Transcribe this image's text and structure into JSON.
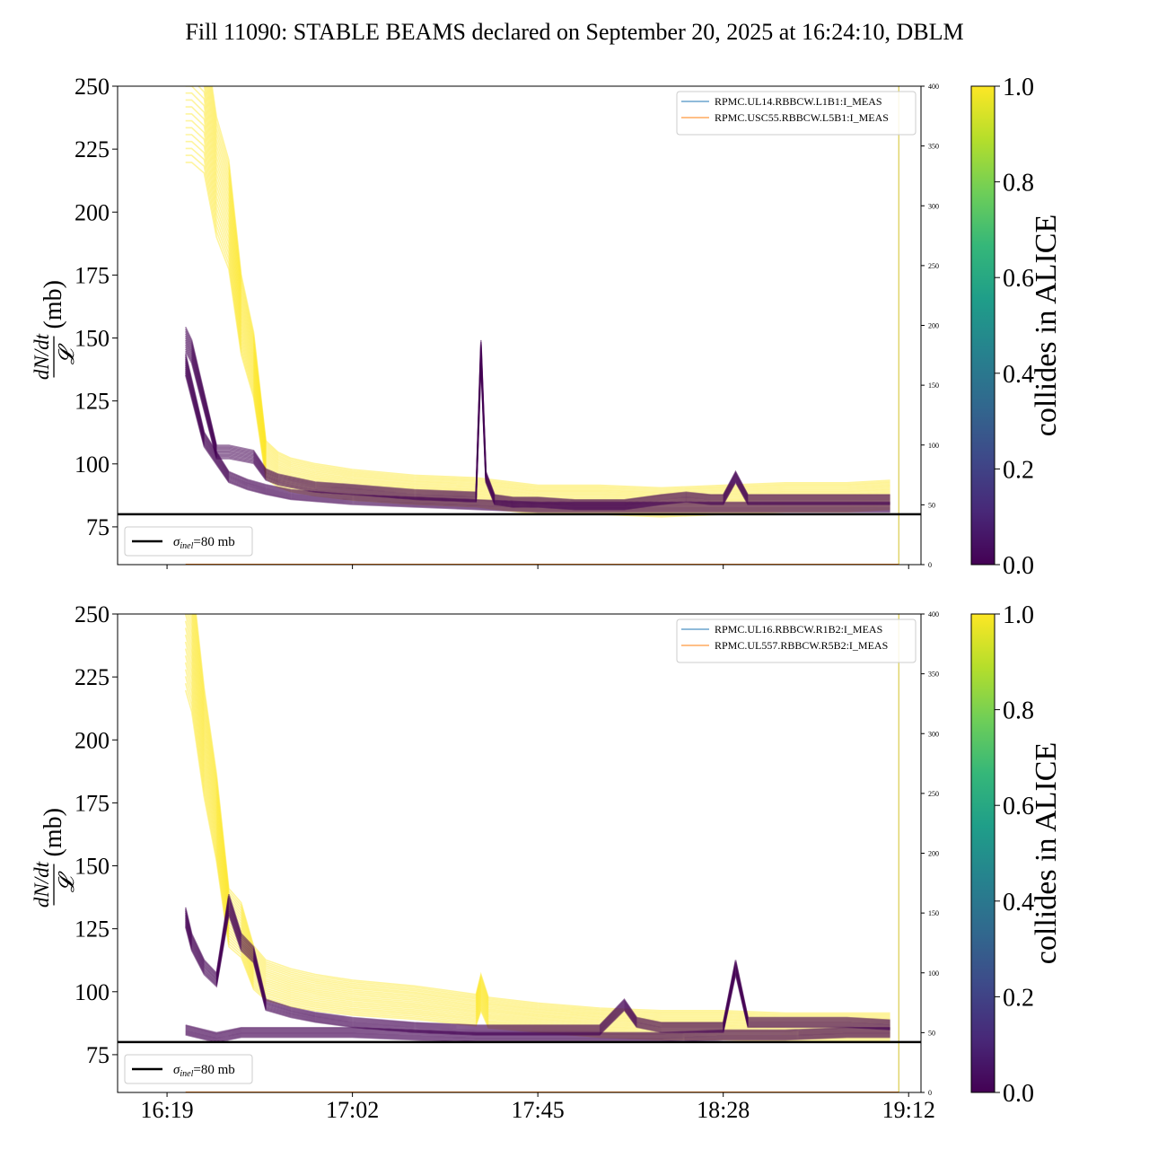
{
  "title": "Fill 11090: STABLE BEAMS declared on September 20, 2025 at 16:24:10, DBLM",
  "colors": {
    "viridis": [
      "#440154",
      "#482878",
      "#3e4989",
      "#31688e",
      "#26828e",
      "#1f9e89",
      "#35b779",
      "#6ece58",
      "#b5de2b",
      "#fde725"
    ],
    "hline": "#000000",
    "right_blue": "#1f77b4",
    "right_orange": "#ff7f0e",
    "vline": "#d4c12a"
  },
  "chart_data": [
    {
      "type": "line",
      "panel": "top",
      "ylabel_math": "dN/dt",
      "ylabel_den": "𝓛",
      "ylabel_unit": "(mb)",
      "ylim": [
        60,
        250
      ],
      "yticks": [
        75,
        100,
        125,
        150,
        175,
        200,
        225,
        250
      ],
      "y2lim": [
        0,
        400
      ],
      "y2ticks": [
        0,
        50,
        100,
        150,
        200,
        250,
        300,
        350,
        400
      ],
      "xlim": [
        -4,
        61
      ],
      "x_ticks_visible": false,
      "hline": {
        "y": 80,
        "label_sym": "σ",
        "label_sub": "inel",
        "label_rest": "=80 mb"
      },
      "vline_x": 59.2,
      "legend_right": [
        "RPMC.UL14.RBBCW.L1B1:I_MEAS",
        "RPMC.USC55.RBBCW.L5B1:I_MEAS"
      ],
      "colorbar": {
        "label": "collides in ALICE",
        "range": [
          0.0,
          1.0
        ],
        "ticks": [
          "0.0",
          "0.2",
          "0.4",
          "0.6",
          "0.8",
          "1.0"
        ]
      },
      "series": [
        {
          "color": 1.0,
          "x": [
            1.5,
            2,
            3,
            4,
            5,
            6,
            7,
            8,
            9,
            10,
            12,
            15,
            20,
            25,
            30,
            35,
            40,
            45,
            50,
            55,
            58.5
          ],
          "y": [
            250,
            250,
            245,
            215,
            200,
            160,
            140,
            102,
            98,
            96,
            94,
            92,
            90,
            89,
            86,
            86,
            85,
            86,
            87,
            87,
            88
          ]
        },
        {
          "color": 0.0,
          "x": [
            1.5,
            2,
            3,
            4,
            5,
            6,
            7,
            8,
            9,
            10,
            12,
            15,
            20,
            25,
            25.4,
            25.8,
            26.5,
            28,
            30,
            33,
            35,
            37,
            40,
            42,
            44,
            45,
            46,
            47,
            50,
            55,
            58.5
          ],
          "y": [
            150,
            145,
            125,
            105,
            105,
            104,
            103,
            96,
            94,
            93,
            91,
            90,
            88,
            87,
            145,
            95,
            86,
            85,
            85,
            84,
            84,
            84,
            86,
            87,
            86,
            86,
            95,
            86,
            86,
            86,
            86
          ]
        },
        {
          "color": 0.0,
          "x": [
            1.5,
            3,
            5,
            6.5,
            8,
            10,
            15,
            20,
            25,
            30,
            35,
            40,
            45,
            50,
            55,
            58.5
          ],
          "y": [
            140,
            110,
            95,
            92,
            90,
            88,
            86,
            85,
            84,
            83,
            83,
            83,
            83,
            83,
            83,
            83
          ]
        }
      ]
    },
    {
      "type": "line",
      "panel": "bottom",
      "ylabel_math": "dN/dt",
      "ylabel_den": "𝓛",
      "ylabel_unit": "(mb)",
      "ylim": [
        60,
        250
      ],
      "yticks": [
        75,
        100,
        125,
        150,
        175,
        200,
        225,
        250
      ],
      "y2lim": [
        0,
        400
      ],
      "y2ticks": [
        0,
        50,
        100,
        150,
        200,
        250,
        300,
        350,
        400
      ],
      "xlim": [
        -4,
        61
      ],
      "x_ticks_visible": true,
      "xticks": [
        "16:19",
        "17:02",
        "17:45",
        "18:28",
        "19:12"
      ],
      "xtick_pos": [
        0,
        15,
        30,
        45,
        60
      ],
      "hline": {
        "y": 80,
        "label_sym": "σ",
        "label_sub": "inel",
        "label_rest": "=80 mb"
      },
      "vline_x": 59.2,
      "legend_right": [
        "RPMC.UL16.RBBCW.R1B2:I_MEAS",
        "RPMC.UL557.RBBCW.R5B2:I_MEAS"
      ],
      "colorbar": {
        "label": "collides in ALICE",
        "range": [
          0.0,
          1.0
        ],
        "ticks": [
          "0.0",
          "0.2",
          "0.4",
          "0.6",
          "0.8",
          "1.0"
        ]
      },
      "series": [
        {
          "color": 1.0,
          "x": [
            1.5,
            2,
            3,
            4,
            5,
            6,
            7,
            8,
            10,
            12,
            15,
            20,
            25,
            25.4,
            26,
            30,
            35,
            40,
            45,
            50,
            55,
            58.5
          ],
          "y": [
            250,
            240,
            200,
            170,
            130,
            125,
            110,
            105,
            102,
            100,
            98,
            96,
            93,
            100,
            92,
            90,
            88,
            87,
            87,
            86,
            86,
            86
          ]
        },
        {
          "color": 0.0,
          "x": [
            1.5,
            2,
            3,
            4,
            5,
            6,
            7,
            8,
            10,
            12,
            15,
            20,
            25,
            30,
            35,
            37,
            38,
            40,
            42,
            44,
            45,
            46,
            47,
            50,
            55,
            58.5
          ],
          "y": [
            130,
            120,
            110,
            105,
            135,
            120,
            115,
            95,
            92,
            90,
            88,
            86,
            85,
            85,
            85,
            95,
            88,
            86,
            86,
            86,
            86,
            110,
            88,
            88,
            88,
            87
          ]
        },
        {
          "color": 0.0,
          "x": [
            1.5,
            4,
            6,
            8,
            10,
            12,
            15,
            20,
            25,
            30,
            35,
            40,
            45,
            50,
            55,
            58.5
          ],
          "y": [
            85,
            82,
            84,
            84,
            84,
            84,
            84,
            83,
            82,
            82,
            82,
            82,
            83,
            83,
            84,
            84
          ]
        }
      ]
    }
  ]
}
